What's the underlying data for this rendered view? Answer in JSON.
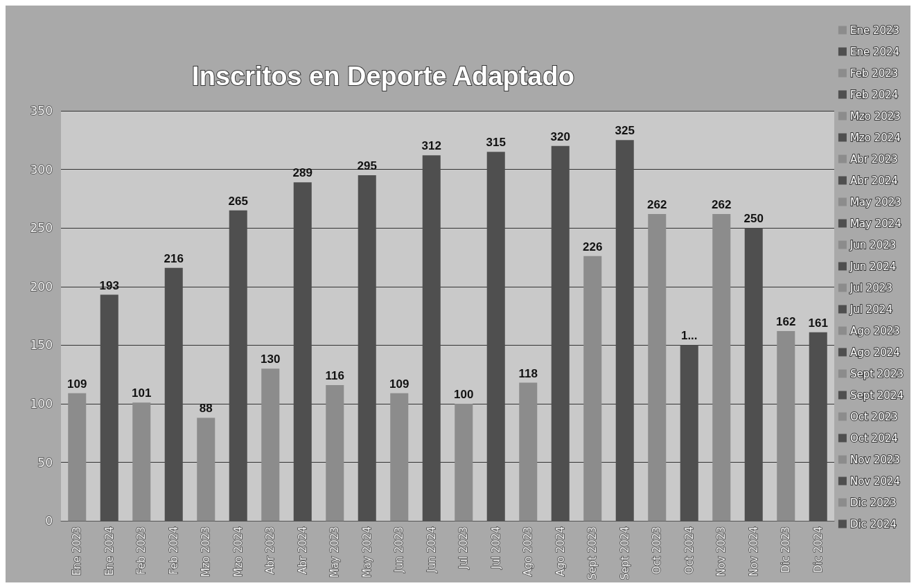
{
  "chart_data": {
    "type": "bar",
    "title": "Inscritos en Deporte Adaptado",
    "categories": [
      "Ene 2023",
      "Ene 2024",
      "Feb 2023",
      "Feb 2024",
      "Mzo 2023",
      "Mzo 2024",
      "Abr 2023",
      "Abr 2024",
      "May 2023",
      "May 2024",
      "Jun 2023",
      "Jun 2024",
      "Jul 2023",
      "Jul 2024",
      "Ago 2023",
      "Ago 2024",
      "Sept 2023",
      "Sept 2024",
      "Oct 2023",
      "Oct 2024",
      "Nov 2023",
      "Nov 2024",
      "Dic 2023",
      "Dic 2024"
    ],
    "series": [
      {
        "name": "Ene 2023",
        "color": "#8c8c8c",
        "values": [
          109,
          null,
          null,
          null,
          null,
          null,
          null,
          null,
          null,
          null,
          null,
          null,
          null,
          null,
          null,
          null,
          null,
          null,
          null,
          null,
          null,
          null,
          null,
          null
        ]
      },
      {
        "name": "Ene 2024",
        "color": "#4f4f4f",
        "values": [
          null,
          193,
          null,
          null,
          null,
          null,
          null,
          null,
          null,
          null,
          null,
          null,
          null,
          null,
          null,
          null,
          null,
          null,
          null,
          null,
          null,
          null,
          null,
          null
        ]
      },
      {
        "name": "Feb 2023",
        "color": "#8c8c8c",
        "values": [
          null,
          null,
          101,
          null,
          null,
          null,
          null,
          null,
          null,
          null,
          null,
          null,
          null,
          null,
          null,
          null,
          null,
          null,
          null,
          null,
          null,
          null,
          null,
          null
        ]
      },
      {
        "name": "Feb 2024",
        "color": "#4f4f4f",
        "values": [
          null,
          null,
          null,
          216,
          null,
          null,
          null,
          null,
          null,
          null,
          null,
          null,
          null,
          null,
          null,
          null,
          null,
          null,
          null,
          null,
          null,
          null,
          null,
          null
        ]
      },
      {
        "name": "Mzo 2023",
        "color": "#8c8c8c",
        "values": [
          null,
          null,
          null,
          null,
          88,
          null,
          null,
          null,
          null,
          null,
          null,
          null,
          null,
          null,
          null,
          null,
          null,
          null,
          null,
          null,
          null,
          null,
          null,
          null
        ]
      },
      {
        "name": "Mzo 2024",
        "color": "#4f4f4f",
        "values": [
          null,
          null,
          null,
          null,
          null,
          265,
          null,
          null,
          null,
          null,
          null,
          null,
          null,
          null,
          null,
          null,
          null,
          null,
          null,
          null,
          null,
          null,
          null,
          null
        ]
      },
      {
        "name": "Abr 2023",
        "color": "#8c8c8c",
        "values": [
          null,
          null,
          null,
          null,
          null,
          null,
          130,
          null,
          null,
          null,
          null,
          null,
          null,
          null,
          null,
          null,
          null,
          null,
          null,
          null,
          null,
          null,
          null,
          null
        ]
      },
      {
        "name": "Abr 2024",
        "color": "#4f4f4f",
        "values": [
          null,
          null,
          null,
          null,
          null,
          null,
          null,
          289,
          null,
          null,
          null,
          null,
          null,
          null,
          null,
          null,
          null,
          null,
          null,
          null,
          null,
          null,
          null,
          null
        ]
      },
      {
        "name": "May 2023",
        "color": "#8c8c8c",
        "values": [
          null,
          null,
          null,
          null,
          null,
          null,
          null,
          null,
          116,
          null,
          null,
          null,
          null,
          null,
          null,
          null,
          null,
          null,
          null,
          null,
          null,
          null,
          null,
          null
        ]
      },
      {
        "name": "May 2024",
        "color": "#4f4f4f",
        "values": [
          null,
          null,
          null,
          null,
          null,
          null,
          null,
          null,
          null,
          295,
          null,
          null,
          null,
          null,
          null,
          null,
          null,
          null,
          null,
          null,
          null,
          null,
          null,
          null
        ]
      },
      {
        "name": "Jun 2023",
        "color": "#8c8c8c",
        "values": [
          null,
          null,
          null,
          null,
          null,
          null,
          null,
          null,
          null,
          null,
          109,
          null,
          null,
          null,
          null,
          null,
          null,
          null,
          null,
          null,
          null,
          null,
          null,
          null
        ]
      },
      {
        "name": "Jun 2024",
        "color": "#4f4f4f",
        "values": [
          null,
          null,
          null,
          null,
          null,
          null,
          null,
          null,
          null,
          null,
          null,
          312,
          null,
          null,
          null,
          null,
          null,
          null,
          null,
          null,
          null,
          null,
          null,
          null
        ]
      },
      {
        "name": "Jul 2023",
        "color": "#8c8c8c",
        "values": [
          null,
          null,
          null,
          null,
          null,
          null,
          null,
          null,
          null,
          null,
          null,
          null,
          100,
          null,
          null,
          null,
          null,
          null,
          null,
          null,
          null,
          null,
          null,
          null
        ]
      },
      {
        "name": "Jul 2024",
        "color": "#4f4f4f",
        "values": [
          null,
          null,
          null,
          null,
          null,
          null,
          null,
          null,
          null,
          null,
          null,
          null,
          null,
          315,
          null,
          null,
          null,
          null,
          null,
          null,
          null,
          null,
          null,
          null
        ]
      },
      {
        "name": "Ago 2023",
        "color": "#8c8c8c",
        "values": [
          null,
          null,
          null,
          null,
          null,
          null,
          null,
          null,
          null,
          null,
          null,
          null,
          null,
          null,
          118,
          null,
          null,
          null,
          null,
          null,
          null,
          null,
          null,
          null
        ]
      },
      {
        "name": "Ago 2024",
        "color": "#4f4f4f",
        "values": [
          null,
          null,
          null,
          null,
          null,
          null,
          null,
          null,
          null,
          null,
          null,
          null,
          null,
          null,
          null,
          320,
          null,
          null,
          null,
          null,
          null,
          null,
          null,
          null
        ]
      },
      {
        "name": "Sept 2023",
        "color": "#8c8c8c",
        "values": [
          null,
          null,
          null,
          null,
          null,
          null,
          null,
          null,
          null,
          null,
          null,
          null,
          null,
          null,
          null,
          null,
          226,
          null,
          null,
          null,
          null,
          null,
          null,
          null
        ]
      },
      {
        "name": "Sept 2024",
        "color": "#4f4f4f",
        "values": [
          null,
          null,
          null,
          null,
          null,
          null,
          null,
          null,
          null,
          null,
          null,
          null,
          null,
          null,
          null,
          null,
          null,
          325,
          null,
          null,
          null,
          null,
          null,
          null
        ]
      },
      {
        "name": "Oct 2023",
        "color": "#8c8c8c",
        "values": [
          null,
          null,
          null,
          null,
          null,
          null,
          null,
          null,
          null,
          null,
          null,
          null,
          null,
          null,
          null,
          null,
          null,
          null,
          262,
          null,
          null,
          null,
          null,
          null
        ]
      },
      {
        "name": "Oct 2024",
        "color": "#4f4f4f",
        "values": [
          null,
          null,
          null,
          null,
          null,
          null,
          null,
          null,
          null,
          null,
          null,
          null,
          null,
          null,
          null,
          null,
          null,
          null,
          null,
          150,
          null,
          null,
          null,
          null
        ],
        "value_labels": [
          null,
          null,
          null,
          null,
          null,
          null,
          null,
          null,
          null,
          null,
          null,
          null,
          null,
          null,
          null,
          null,
          null,
          null,
          null,
          "1...",
          null,
          null,
          null,
          null
        ]
      },
      {
        "name": "Nov 2023",
        "color": "#8c8c8c",
        "values": [
          null,
          null,
          null,
          null,
          null,
          null,
          null,
          null,
          null,
          null,
          null,
          null,
          null,
          null,
          null,
          null,
          null,
          null,
          null,
          null,
          262,
          null,
          null,
          null
        ]
      },
      {
        "name": "Nov 2024",
        "color": "#4f4f4f",
        "values": [
          null,
          null,
          null,
          null,
          null,
          null,
          null,
          null,
          null,
          null,
          null,
          null,
          null,
          null,
          null,
          null,
          null,
          null,
          null,
          null,
          null,
          250,
          null,
          null
        ]
      },
      {
        "name": "Dic 2023",
        "color": "#8c8c8c",
        "values": [
          null,
          null,
          null,
          null,
          null,
          null,
          null,
          null,
          null,
          null,
          null,
          null,
          null,
          null,
          null,
          null,
          null,
          null,
          null,
          null,
          null,
          null,
          162,
          null
        ]
      },
      {
        "name": "Dic 2024",
        "color": "#4f4f4f",
        "values": [
          null,
          null,
          null,
          null,
          null,
          null,
          null,
          null,
          null,
          null,
          null,
          null,
          null,
          null,
          null,
          null,
          null,
          null,
          null,
          null,
          null,
          null,
          null,
          161
        ]
      }
    ],
    "data_labels": true,
    "ylim": [
      0,
      350
    ],
    "yticks": [
      0,
      50,
      100,
      150,
      200,
      250,
      300,
      350
    ],
    "grid": "y",
    "legend": "right"
  }
}
